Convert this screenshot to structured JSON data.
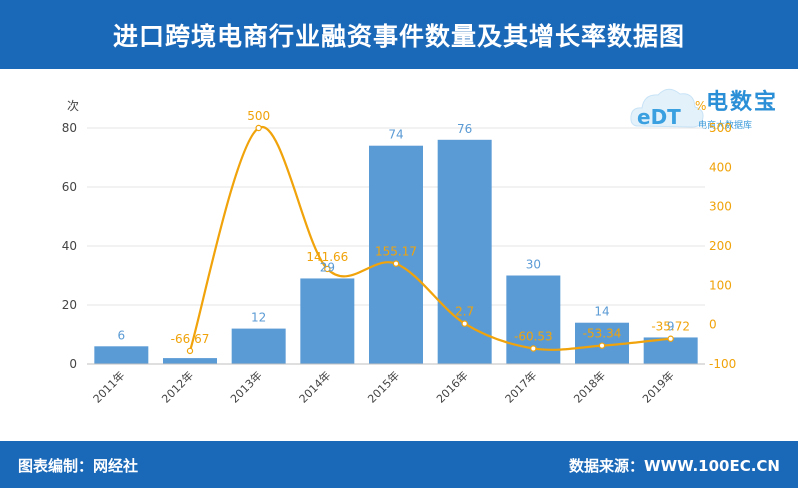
{
  "header": {
    "title": "进口跨境电商行业融资事件数量及其增长率数据图"
  },
  "footer": {
    "left": "图表编制：网经社",
    "right": "数据来源：WWW.100EC.CN"
  },
  "logo": {
    "name": "电数宝",
    "sub": "电商大数据库",
    "brand_color": "#2a8fd6"
  },
  "colors": {
    "bar": "#5b9bd5",
    "line": "#f0a30a",
    "bar_label": "#5b9bd5",
    "line_label": "#f0a30a",
    "header": "#1a68b8"
  },
  "chart_data": {
    "type": "bar",
    "categories": [
      "2011年",
      "2012年",
      "2013年",
      "2014年",
      "2015年",
      "2016年",
      "2017年",
      "2018年",
      "2019年"
    ],
    "series": [
      {
        "type": "bar",
        "axis": "left",
        "values": [
          6,
          2,
          12,
          29,
          74,
          76,
          30,
          14,
          9
        ],
        "labels": [
          "6",
          "",
          "12",
          "29",
          "74",
          "76",
          "30",
          "14",
          "9"
        ]
      },
      {
        "type": "line",
        "axis": "right",
        "smooth": true,
        "values": [
          null,
          -66.67,
          500,
          141.66,
          155.17,
          2.7,
          -60.53,
          -53.34,
          -35.72
        ],
        "labels": [
          "",
          "-66.67",
          "500",
          "141.66",
          "155.17",
          "2.7",
          "-60.53",
          "-53.34",
          "-35.72"
        ]
      }
    ],
    "y_left": {
      "unit": "次",
      "min": 0,
      "max": 80,
      "ticks": [
        0,
        20,
        40,
        60,
        80
      ]
    },
    "y_right": {
      "unit": "%",
      "min": -100,
      "max": 500,
      "ticks": [
        -100,
        0,
        100,
        200,
        300,
        400,
        500
      ]
    },
    "grid": true,
    "legend": "none"
  }
}
